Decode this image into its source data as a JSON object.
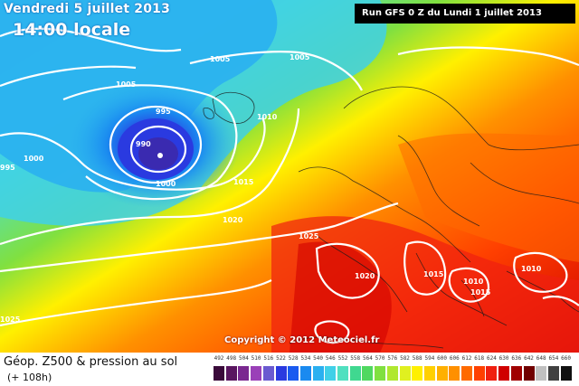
{
  "header": {
    "date_line": "Vendredi 5 juillet 2013",
    "time_line": "14:00 locale",
    "run_info": "Run GFS 0 Z du Lundi 1 juillet 2013"
  },
  "copyright": "Copyright © 2012 Meteociel.fr",
  "legend": {
    "title": "Géop. Z500 & pression au sol",
    "subtitle": "(+ 108h)",
    "scale": [
      {
        "label": "492",
        "color": "#3a0a3a"
      },
      {
        "label": "498",
        "color": "#5a1660"
      },
      {
        "label": "504",
        "color": "#7a2890"
      },
      {
        "label": "510",
        "color": "#9a40b8"
      },
      {
        "label": "516",
        "color": "#6a5ad0"
      },
      {
        "label": "522",
        "color": "#2a3ae0"
      },
      {
        "label": "528",
        "color": "#1a5af0"
      },
      {
        "label": "534",
        "color": "#1a8af0"
      },
      {
        "label": "540",
        "color": "#2ab0f0"
      },
      {
        "label": "546",
        "color": "#40d0e8"
      },
      {
        "label": "552",
        "color": "#50e0c0"
      },
      {
        "label": "558",
        "color": "#40d890"
      },
      {
        "label": "564",
        "color": "#50d860"
      },
      {
        "label": "570",
        "color": "#80e040"
      },
      {
        "label": "576",
        "color": "#b0e830"
      },
      {
        "label": "582",
        "color": "#e0f020"
      },
      {
        "label": "588",
        "color": "#fff000"
      },
      {
        "label": "594",
        "color": "#ffd000"
      },
      {
        "label": "600",
        "color": "#ffb000"
      },
      {
        "label": "606",
        "color": "#ff9000"
      },
      {
        "label": "612",
        "color": "#ff6a00"
      },
      {
        "label": "618",
        "color": "#ff4000"
      },
      {
        "label": "624",
        "color": "#f02010"
      },
      {
        "label": "630",
        "color": "#d00000"
      },
      {
        "label": "636",
        "color": "#a00000"
      },
      {
        "label": "642",
        "color": "#700000"
      },
      {
        "label": "648",
        "color": "#c0c0c0"
      },
      {
        "label": "654",
        "color": "#404040"
      },
      {
        "label": "660",
        "color": "#101010"
      }
    ]
  },
  "isobars": [
    "1005",
    "1005",
    "995",
    "990",
    "1000",
    "1000",
    "995",
    "1010",
    "1015",
    "1020",
    "1025",
    "1020",
    "1015",
    "1010",
    "1010",
    "1015",
    "1025",
    "1005"
  ]
}
